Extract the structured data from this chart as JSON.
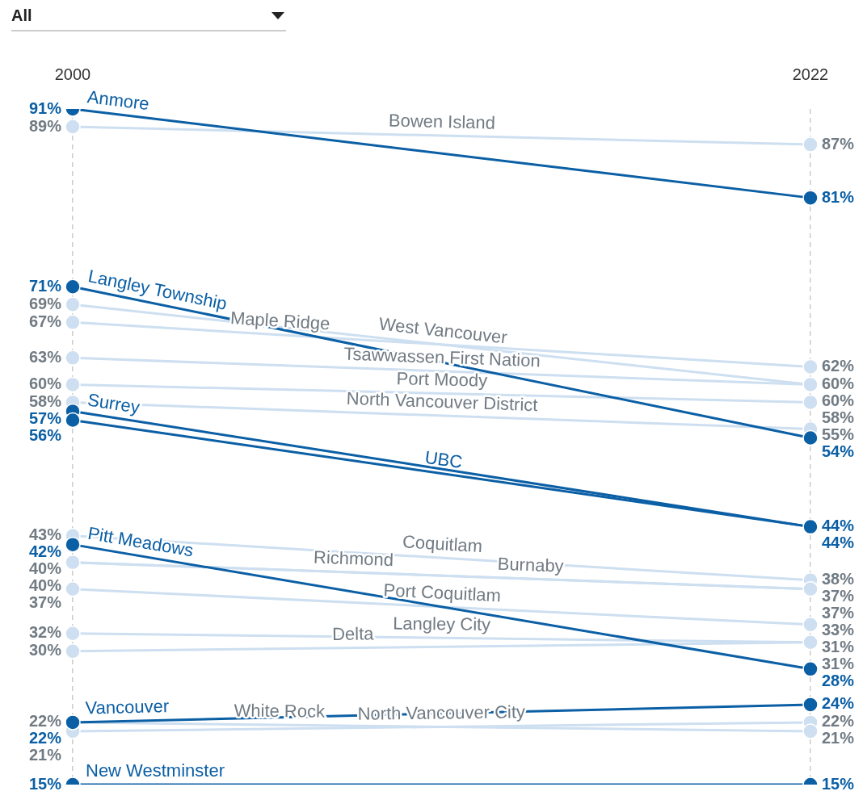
{
  "chart_data": {
    "type": "line",
    "annotations": [
      "All"
    ],
    "categories": [
      "2000",
      "2022"
    ],
    "tick_labels": "x",
    "grid": "x",
    "legend": false,
    "marker": "circle",
    "line_style": "solid",
    "series": [
      {
        "name": "Bowen Island",
        "color": "#cddff0",
        "values": [
          89,
          87
        ],
        "value_labels": [
          "89%",
          "87%"
        ]
      },
      {
        "name": "West Vancouver",
        "color": "#cddff0",
        "values": [
          69,
          60
        ],
        "value_labels": [
          "69%",
          "60%"
        ]
      },
      {
        "name": "Maple Ridge",
        "color": "#cddff0",
        "values": [
          67,
          62
        ],
        "value_labels": [
          "67%",
          "62%"
        ]
      },
      {
        "name": "Tsawwassen First Nation",
        "color": "#cddff0",
        "values": [
          63,
          60
        ],
        "value_labels": [
          "63%",
          "60%"
        ]
      },
      {
        "name": "Port Moody",
        "color": "#cddff0",
        "values": [
          60,
          58
        ],
        "value_labels": [
          "60%",
          "58%"
        ]
      },
      {
        "name": "North Vancouver District",
        "color": "#cddff0",
        "values": [
          58,
          55
        ],
        "value_labels": [
          "58%",
          "55%"
        ]
      },
      {
        "name": "Coquitlam",
        "color": "#cddff0",
        "values": [
          43,
          38
        ],
        "value_labels": [
          "43%",
          "38%"
        ]
      },
      {
        "name": "Richmond",
        "color": "#cddff0",
        "values": [
          40,
          37
        ],
        "value_labels": [
          "40%",
          "37%"
        ]
      },
      {
        "name": "Burnaby",
        "color": "#cddff0",
        "values": [
          40,
          37
        ],
        "value_labels": [
          "40%",
          "37%"
        ]
      },
      {
        "name": "Port Coquitlam",
        "color": "#cddff0",
        "values": [
          37,
          33
        ],
        "value_labels": [
          "37%",
          "33%"
        ]
      },
      {
        "name": "Langley City",
        "color": "#cddff0",
        "values": [
          32,
          31
        ],
        "value_labels": [
          "32%",
          "31%"
        ]
      },
      {
        "name": "Delta",
        "color": "#cddff0",
        "values": [
          30,
          31
        ],
        "value_labels": [
          "30%",
          "31%"
        ]
      },
      {
        "name": "North Vancouver City",
        "color": "#cddff0",
        "values": [
          21,
          22
        ],
        "value_labels": [
          "21%",
          "22%"
        ]
      },
      {
        "name": "White Rock",
        "color": "#cddff0",
        "values": [
          22,
          21
        ],
        "value_labels": [
          "22%",
          "21%"
        ]
      },
      {
        "name": "Anmore",
        "color": "#0b5fa5",
        "values": [
          91,
          81
        ],
        "value_labels": [
          "91%",
          "81%"
        ]
      },
      {
        "name": "Langley Township",
        "color": "#0b5fa5",
        "values": [
          71,
          54
        ],
        "value_labels": [
          "71%",
          "54%"
        ]
      },
      {
        "name": "Surrey",
        "color": "#0b5fa5",
        "values": [
          57,
          44
        ],
        "value_labels": [
          "57%",
          "44%"
        ]
      },
      {
        "name": "UBC",
        "color": "#0b5fa5",
        "values": [
          56,
          44
        ],
        "value_labels": [
          "56%",
          "44%"
        ]
      },
      {
        "name": "Pitt Meadows",
        "color": "#0b5fa5",
        "values": [
          42,
          28
        ],
        "value_labels": [
          "42%",
          "28%"
        ]
      },
      {
        "name": "Vancouver",
        "color": "#0b5fa5",
        "values": [
          22,
          24
        ],
        "value_labels": [
          "22%",
          "24%"
        ]
      },
      {
        "name": "New Westminster",
        "color": "#0b5fa5",
        "values": [
          15,
          15
        ],
        "value_labels": [
          "15%",
          "15%"
        ]
      }
    ]
  }
}
